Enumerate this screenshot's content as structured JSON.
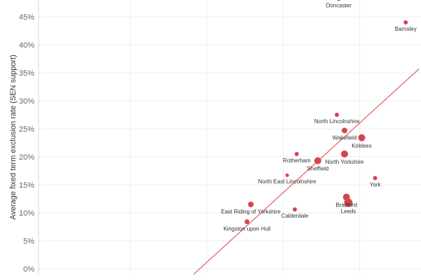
{
  "chart_data": {
    "type": "scatter",
    "title": "",
    "xlabel": "",
    "ylabel": "Average fixed term exclusion rate (SEN support)",
    "ylim": [
      -0.01,
      0.48
    ],
    "xlim": [
      0,
      10
    ],
    "y_ticks": [
      {
        "value": 0.0,
        "label": "0%"
      },
      {
        "value": 0.05,
        "label": "5%"
      },
      {
        "value": 0.1,
        "label": "10%"
      },
      {
        "value": 0.15,
        "label": "15%"
      },
      {
        "value": 0.2,
        "label": "20%"
      },
      {
        "value": 0.25,
        "label": "25%"
      },
      {
        "value": 0.3,
        "label": "30%"
      },
      {
        "value": 0.35,
        "label": "35%"
      },
      {
        "value": 0.4,
        "label": "40%"
      },
      {
        "value": 0.45,
        "label": "45%"
      }
    ],
    "x_gridlines": [
      2.4,
      4.4,
      6.4,
      8.4
    ],
    "point_color": "#d6454d",
    "trend_color": "#e06a6a",
    "trend_line": {
      "x1": 4.05,
      "y1": -0.01,
      "x2": 9.95,
      "y2": 0.357
    },
    "points": [
      {
        "name": "Doncaster",
        "x": 7.85,
        "y": 0.482,
        "size": 3
      },
      {
        "name": "Barnsley",
        "x": 9.6,
        "y": 0.44,
        "size": 3
      },
      {
        "name": "North Lincolnshire",
        "x": 7.8,
        "y": 0.275,
        "size": 3
      },
      {
        "name": "Wakefield",
        "x": 8.0,
        "y": 0.247,
        "size": 4
      },
      {
        "name": "Kirklees",
        "x": 8.45,
        "y": 0.234,
        "size": 5
      },
      {
        "name": "Rotherham",
        "x": 6.75,
        "y": 0.205,
        "size": 3
      },
      {
        "name": "North Yorkshire",
        "x": 8.0,
        "y": 0.205,
        "size": 5
      },
      {
        "name": "Sheffield",
        "x": 7.3,
        "y": 0.193,
        "size": 5
      },
      {
        "name": "North East Lincolnshire",
        "x": 6.5,
        "y": 0.167,
        "size": 2.5
      },
      {
        "name": "York",
        "x": 8.8,
        "y": 0.162,
        "size": 3
      },
      {
        "name": "Bradford",
        "x": 8.05,
        "y": 0.128,
        "size": 5
      },
      {
        "name": "Leeds",
        "x": 8.1,
        "y": 0.118,
        "size": 6
      },
      {
        "name": "East Riding of Yorkshire",
        "x": 5.55,
        "y": 0.115,
        "size": 4
      },
      {
        "name": "Calderdale",
        "x": 6.7,
        "y": 0.106,
        "size": 3
      },
      {
        "name": "Kingston upon Hull",
        "x": 5.45,
        "y": 0.084,
        "size": 3.5
      }
    ]
  }
}
